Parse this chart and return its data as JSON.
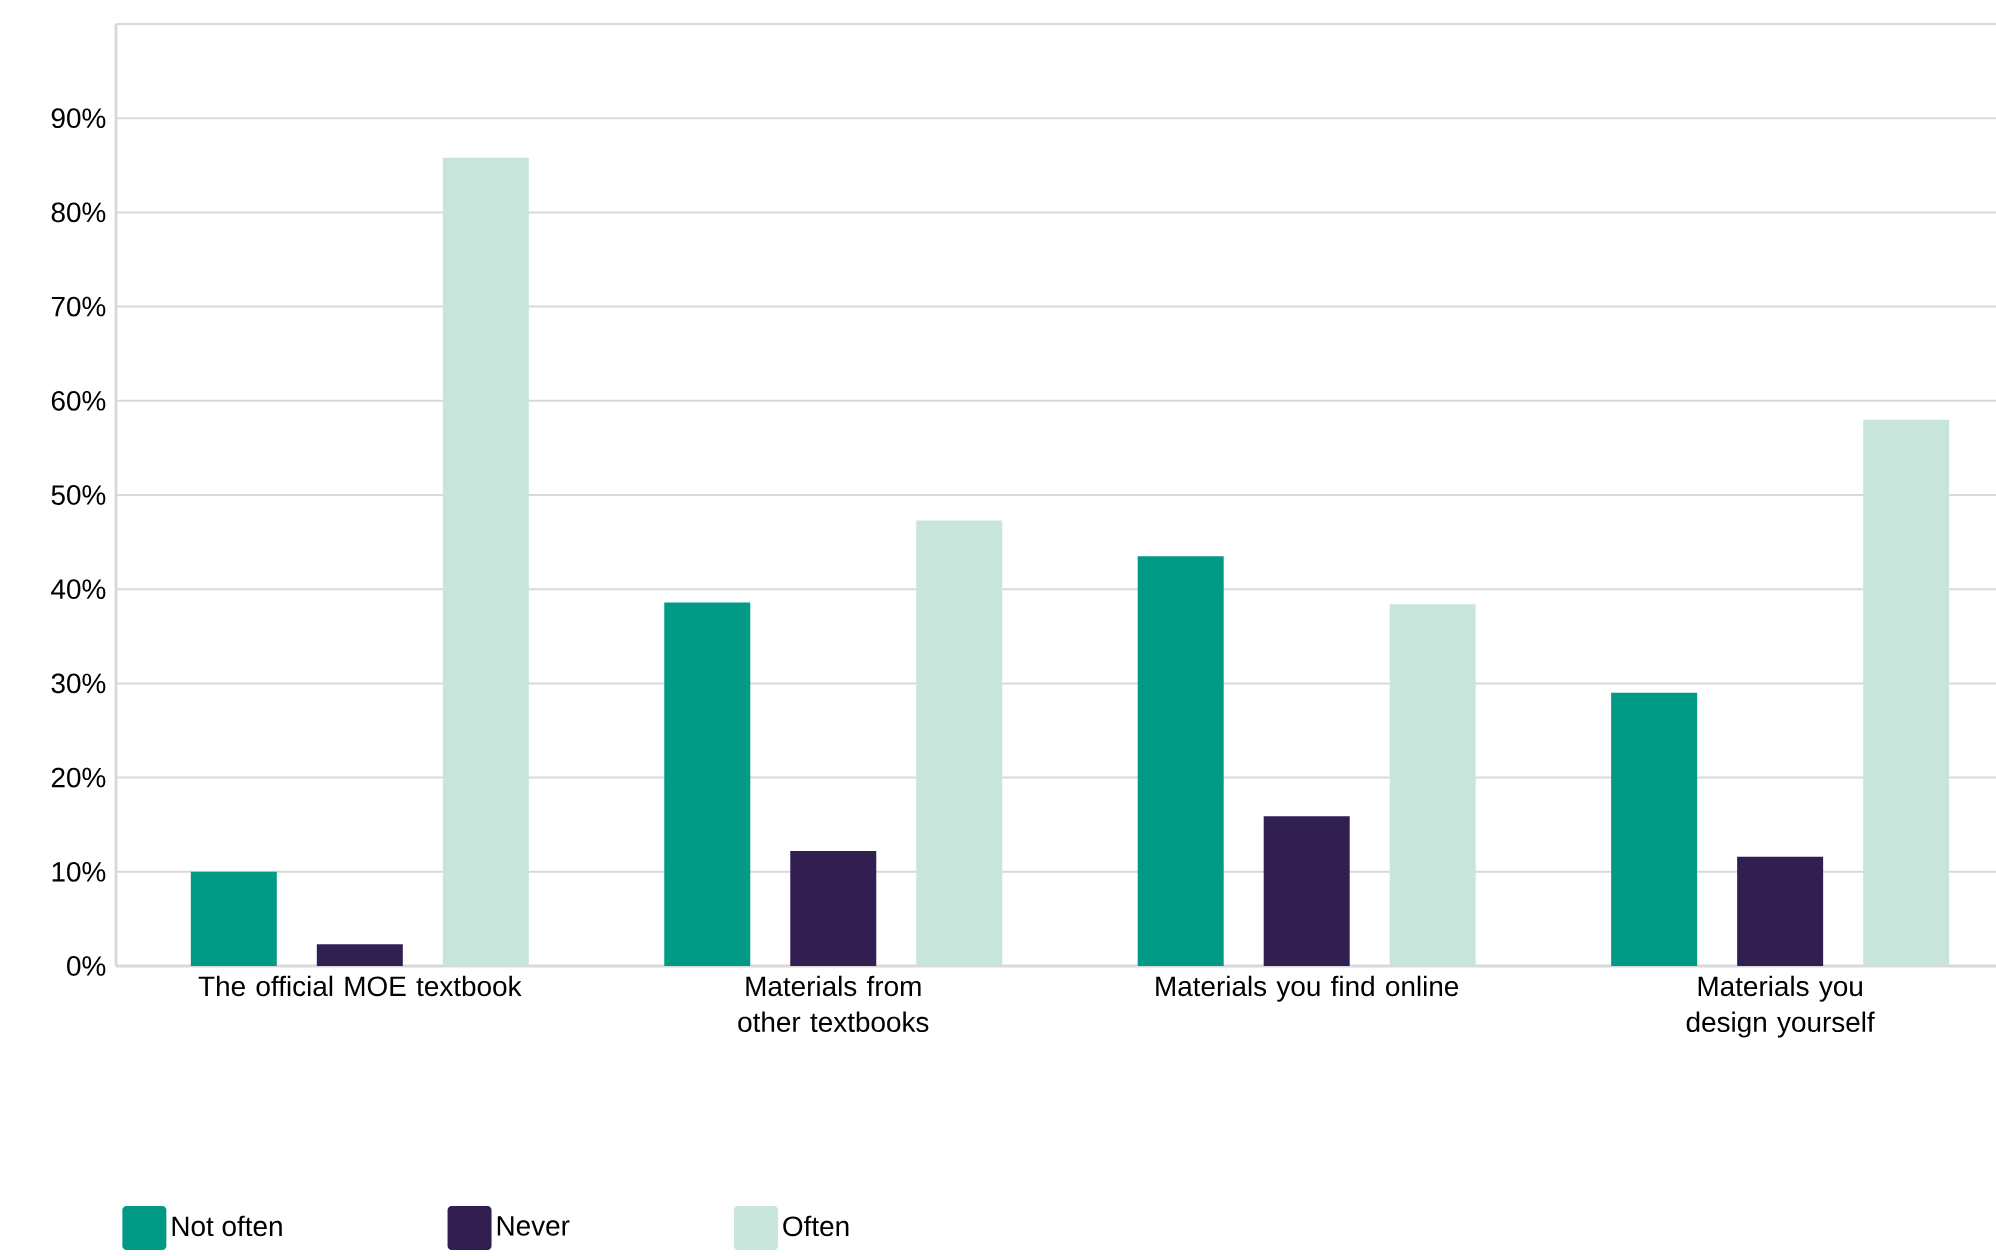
{
  "chart_data": {
    "type": "bar",
    "categories": [
      "The official MOE textbook",
      "Materials from other textbooks",
      "Materials you find online",
      "Materials you design yourself"
    ],
    "series": [
      {
        "name": "Not often",
        "color": "#019a87",
        "values": [
          10,
          38.6,
          43.5,
          29
        ]
      },
      {
        "name": "Never",
        "color": "#321f52",
        "values": [
          2.3,
          12.2,
          15.9,
          11.6
        ]
      },
      {
        "name": "Often",
        "color": "#c8e5dc",
        "values": [
          85.8,
          47.3,
          38.4,
          58
        ]
      }
    ],
    "ylim": [
      0,
      100
    ],
    "yticks": [
      {
        "value": 0,
        "label": "0%"
      },
      {
        "value": 10,
        "label": "10%"
      },
      {
        "value": 20,
        "label": "20%"
      },
      {
        "value": 30,
        "label": "30%"
      },
      {
        "value": 40,
        "label": "40%"
      },
      {
        "value": 50,
        "label": "50%"
      },
      {
        "value": 60,
        "label": "60%"
      },
      {
        "value": 70,
        "label": "70%"
      },
      {
        "value": 80,
        "label": "80%"
      },
      {
        "value": 90,
        "label": "90%"
      },
      {
        "value": 100,
        "label": null
      }
    ],
    "grid": "y",
    "legend": "bottom left"
  }
}
